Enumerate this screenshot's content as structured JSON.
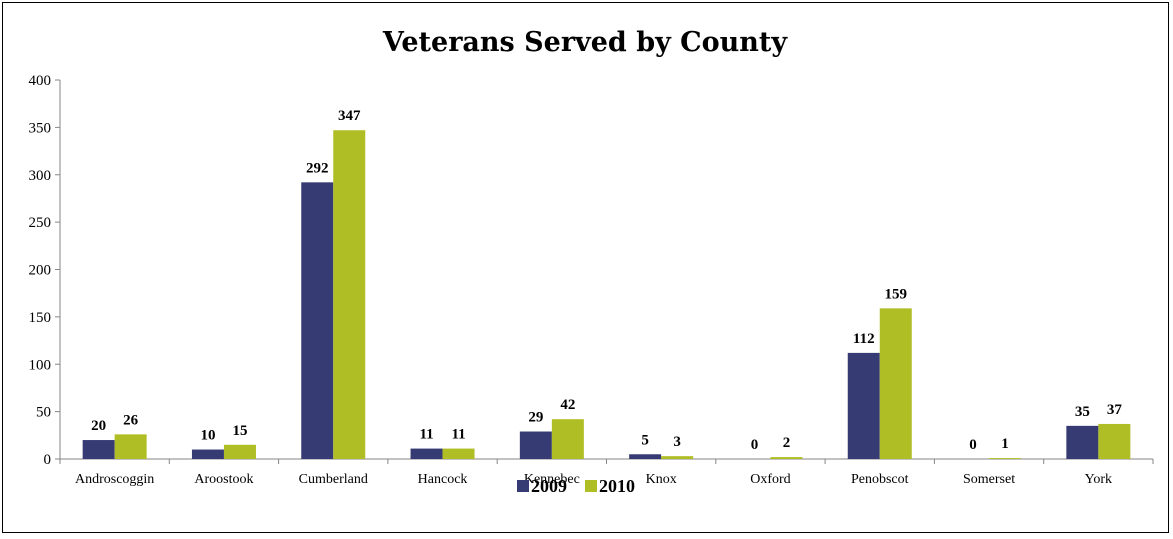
{
  "chart_data": {
    "type": "bar",
    "title": "Veterans Served by County",
    "categories": [
      "Androscoggin",
      "Aroostook",
      "Cumberland",
      "Hancock",
      "Kennebec",
      "Knox",
      "Oxford",
      "Penobscot",
      "Somerset",
      "York"
    ],
    "series": [
      {
        "name": "2009",
        "color": "#363B74",
        "values": [
          20,
          10,
          292,
          11,
          29,
          5,
          0,
          112,
          0,
          35
        ]
      },
      {
        "name": "2010",
        "color": "#AFBE24",
        "values": [
          26,
          15,
          347,
          11,
          42,
          3,
          2,
          159,
          1,
          37
        ]
      }
    ],
    "y_ticks": [
      "0",
      "50",
      "100",
      "150",
      "200",
      "250",
      "300",
      "350",
      "400"
    ],
    "ylim": [
      0,
      400
    ],
    "grid": false,
    "legend_position": "bottom-center",
    "data_labels": true
  }
}
